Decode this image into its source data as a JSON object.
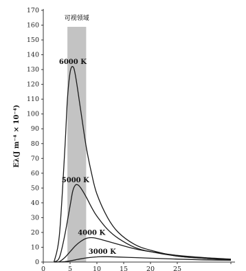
{
  "chart_data": {
    "type": "line",
    "title": "",
    "xlabel": "",
    "ylabel": "Eλ(J m⁻⁴ × 10⁻⁴)",
    "xlim": [
      0,
      35
    ],
    "ylim": [
      0,
      170
    ],
    "x_ticks": [
      "0",
      "5",
      "10",
      "15",
      "20",
      "25"
    ],
    "y_ticks": [
      "0",
      "10",
      "20",
      "30",
      "40",
      "50",
      "60",
      "70",
      "80",
      "90",
      "100",
      "110",
      "120",
      "130",
      "140",
      "150",
      "160",
      "170"
    ],
    "visible_band": {
      "label": "可视领域",
      "from": 4.5,
      "to": 8.0
    },
    "grid": false,
    "series": [
      {
        "name": "6000 K",
        "x": [
          2,
          3,
          4,
          4.5,
          5,
          5.5,
          6,
          7,
          8,
          9,
          10,
          12,
          14,
          17,
          20,
          25,
          30,
          35
        ],
        "values": [
          0,
          18,
          75,
          110,
          128,
          132,
          126,
          102,
          78,
          60,
          46,
          30,
          20,
          12,
          8,
          4,
          2.5,
          1.5
        ]
      },
      {
        "name": "5000 K",
        "x": [
          2,
          3,
          4,
          5,
          5.5,
          6,
          6.5,
          7,
          8,
          9,
          10,
          12,
          14,
          17,
          20,
          25,
          30,
          35
        ],
        "values": [
          0,
          3,
          18,
          38,
          48,
          52,
          52,
          50,
          44,
          37,
          31,
          22,
          16,
          10,
          7,
          4,
          2.5,
          1.5
        ]
      },
      {
        "name": "4000 K",
        "x": [
          2,
          3,
          4,
          5,
          6,
          7,
          8,
          9,
          10,
          12,
          14,
          17,
          20,
          25,
          30,
          35
        ],
        "values": [
          0,
          0.3,
          3,
          7,
          11,
          14,
          16,
          16.5,
          16,
          14,
          12,
          9,
          7,
          4.5,
          3,
          2
        ]
      },
      {
        "name": "3000 K",
        "x": [
          3,
          4,
          5,
          6,
          7,
          8,
          9,
          10,
          11,
          12,
          14,
          17,
          20,
          25,
          30,
          35
        ],
        "values": [
          0,
          0.3,
          0.8,
          1.5,
          2.2,
          2.8,
          3.2,
          3.5,
          3.6,
          3.6,
          3.4,
          3.0,
          2.6,
          2.0,
          1.5,
          1.2
        ]
      }
    ]
  }
}
